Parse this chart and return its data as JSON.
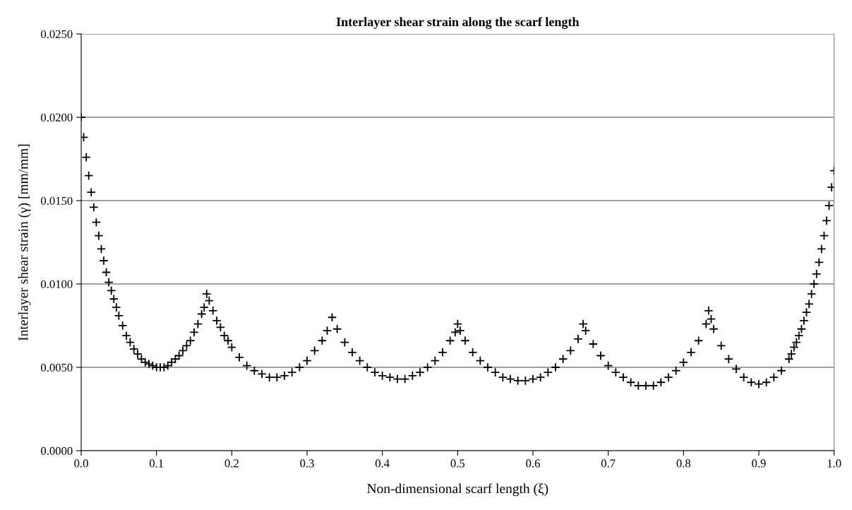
{
  "chart_data": {
    "type": "scatter",
    "title": "Interlayer shear strain along the scarf length",
    "xlabel": "Non-dimensional scarf length (ξ)",
    "ylabel": "Interlayer shear strain (γ) [mm/mm]",
    "series": [
      {
        "color": "#000000",
        "x": [
          0,
          0.0033,
          0.0067,
          0.01,
          0.0133,
          0.0167,
          0.02,
          0.0233,
          0.0267,
          0.03,
          0.0333,
          0.0367,
          0.04,
          0.0433,
          0.0467,
          0.05,
          0.055,
          0.06,
          0.065,
          0.07,
          0.075,
          0.08,
          0.085,
          0.09,
          0.095,
          0.1,
          0.105,
          0.11,
          0.115,
          0.12,
          0.125,
          0.13,
          0.135,
          0.14,
          0.145,
          0.15,
          0.155,
          0.16,
          0.1633,
          0.1667,
          0.17,
          0.175,
          0.18,
          0.185,
          0.19,
          0.195,
          0.2,
          0.21,
          0.22,
          0.23,
          0.24,
          0.25,
          0.26,
          0.27,
          0.28,
          0.29,
          0.3,
          0.31,
          0.32,
          0.3267,
          0.3333,
          0.34,
          0.35,
          0.36,
          0.37,
          0.38,
          0.39,
          0.4,
          0.41,
          0.42,
          0.43,
          0.44,
          0.45,
          0.46,
          0.47,
          0.48,
          0.49,
          0.4967,
          0.5,
          0.5033,
          0.51,
          0.52,
          0.53,
          0.54,
          0.55,
          0.56,
          0.57,
          0.58,
          0.59,
          0.6,
          0.61,
          0.62,
          0.63,
          0.64,
          0.65,
          0.66,
          0.6667,
          0.67,
          0.68,
          0.69,
          0.7,
          0.71,
          0.72,
          0.73,
          0.74,
          0.75,
          0.76,
          0.77,
          0.78,
          0.79,
          0.8,
          0.81,
          0.82,
          0.83,
          0.8333,
          0.8367,
          0.84,
          0.85,
          0.86,
          0.87,
          0.88,
          0.89,
          0.9,
          0.91,
          0.92,
          0.93,
          0.94,
          0.9433,
          0.9467,
          0.95,
          0.9533,
          0.9567,
          0.96,
          0.9633,
          0.9667,
          0.97,
          0.9733,
          0.9767,
          0.98,
          0.9833,
          0.9867,
          0.99,
          0.9933,
          0.9967,
          1.0
        ],
        "values": [
          0.02,
          0.0188,
          0.0176,
          0.0165,
          0.0155,
          0.0146,
          0.0137,
          0.0129,
          0.0121,
          0.0114,
          0.0107,
          0.0101,
          0.0096,
          0.0091,
          0.0086,
          0.0081,
          0.0075,
          0.0069,
          0.0065,
          0.0061,
          0.0058,
          0.0055,
          0.0053,
          0.0052,
          0.0051,
          0.005,
          0.005,
          0.005,
          0.0051,
          0.0053,
          0.0055,
          0.0057,
          0.006,
          0.0063,
          0.0066,
          0.0071,
          0.0076,
          0.0082,
          0.0086,
          0.0094,
          0.009,
          0.0084,
          0.0078,
          0.0074,
          0.0069,
          0.0066,
          0.0062,
          0.0056,
          0.0051,
          0.0048,
          0.0046,
          0.0044,
          0.0044,
          0.0045,
          0.0047,
          0.005,
          0.0054,
          0.006,
          0.0066,
          0.0072,
          0.008,
          0.0073,
          0.0065,
          0.0059,
          0.0054,
          0.005,
          0.0047,
          0.0045,
          0.0044,
          0.0043,
          0.0043,
          0.0045,
          0.0047,
          0.005,
          0.0054,
          0.0059,
          0.0066,
          0.0071,
          0.0076,
          0.0072,
          0.0066,
          0.0059,
          0.0054,
          0.005,
          0.0047,
          0.0044,
          0.0043,
          0.0042,
          0.0042,
          0.0043,
          0.0044,
          0.0047,
          0.005,
          0.0055,
          0.006,
          0.0067,
          0.0076,
          0.0072,
          0.0064,
          0.0057,
          0.0051,
          0.0047,
          0.0044,
          0.0041,
          0.0039,
          0.0039,
          0.0039,
          0.0041,
          0.0044,
          0.0048,
          0.0053,
          0.0059,
          0.0066,
          0.0076,
          0.0084,
          0.0079,
          0.0073,
          0.0063,
          0.0055,
          0.0049,
          0.0044,
          0.0041,
          0.004,
          0.0041,
          0.0044,
          0.0048,
          0.0055,
          0.0058,
          0.0062,
          0.0065,
          0.0069,
          0.0073,
          0.0078,
          0.0083,
          0.0088,
          0.0094,
          0.01,
          0.0106,
          0.0113,
          0.0121,
          0.0129,
          0.0138,
          0.0147,
          0.0158,
          0.0168
        ]
      }
    ],
    "xlim": [
      0,
      1.0
    ],
    "xticks": [
      {
        "value": 0,
        "label": "0.0"
      },
      {
        "value": 0.1,
        "label": "0.1"
      },
      {
        "value": 0.2,
        "label": "0.2"
      },
      {
        "value": 0.3,
        "label": "0.3"
      },
      {
        "value": 0.4,
        "label": "0.4"
      },
      {
        "value": 0.5,
        "label": "0.5"
      },
      {
        "value": 0.6,
        "label": "0.6"
      },
      {
        "value": 0.7,
        "label": "0.7"
      },
      {
        "value": 0.8,
        "label": "0.8"
      },
      {
        "value": 0.9,
        "label": "0.9"
      },
      {
        "value": 1.0,
        "label": "1.0"
      }
    ],
    "ylim": [
      0,
      0.025
    ],
    "yticks": [
      {
        "value": 0,
        "label": "0.0000"
      },
      {
        "value": 0.005,
        "label": "0.0050"
      },
      {
        "value": 0.01,
        "label": "0.0100"
      },
      {
        "value": 0.015,
        "label": "0.0150"
      },
      {
        "value": 0.02,
        "label": "0.0200"
      },
      {
        "value": 0.025,
        "label": "0.0250"
      }
    ],
    "grid": "y",
    "marker": "cross"
  }
}
